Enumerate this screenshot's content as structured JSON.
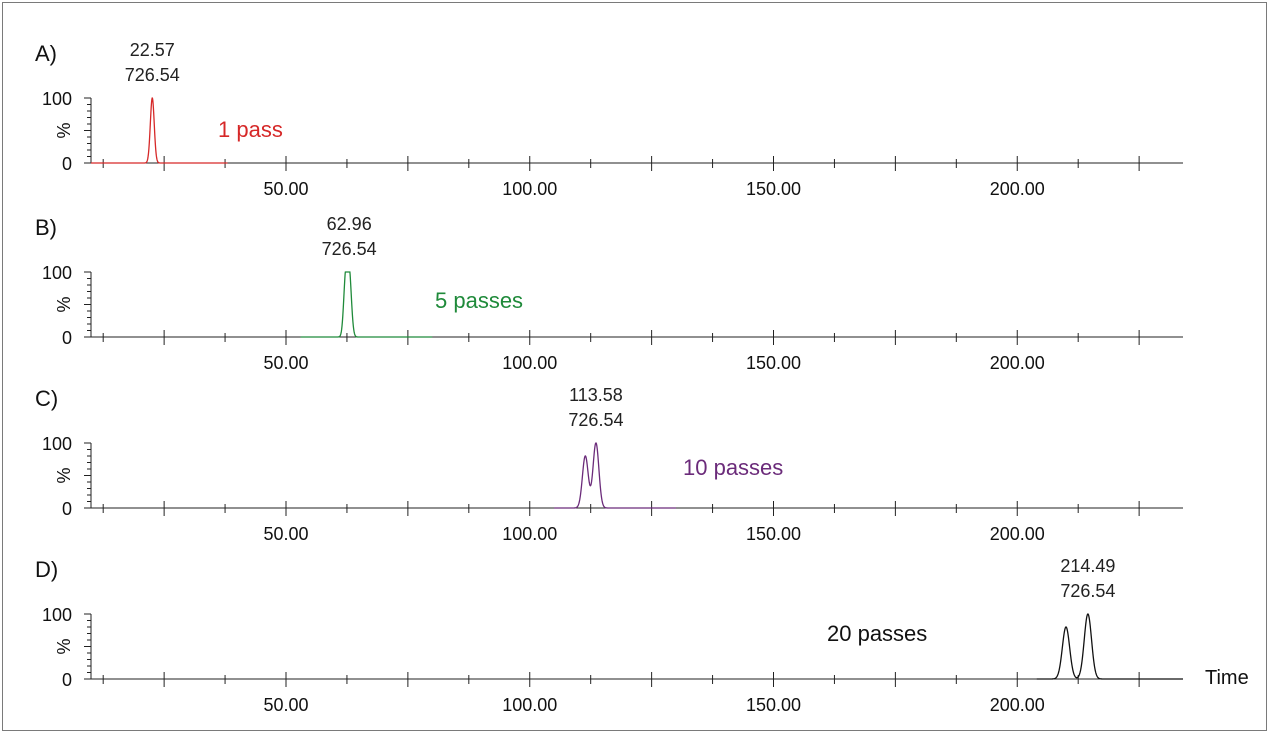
{
  "chart_data": [
    {
      "type": "line",
      "panel_label": "A)",
      "annotation_time": "22.57",
      "annotation_mass": "726.54",
      "legend_text": "1 pass",
      "color": "#d62828",
      "x_range_trace": [
        10,
        38
      ],
      "peaks": [
        {
          "x": 22.57,
          "y": 100,
          "width": 0.4
        }
      ],
      "xlim": [
        10,
        234
      ],
      "ylim": [
        0,
        100
      ],
      "y_ticks": [
        "100",
        "%",
        "0"
      ],
      "x_tick_labels": [
        "50.00",
        "100.00",
        "150.00",
        "200.00"
      ],
      "x_axis_label": ""
    },
    {
      "type": "line",
      "panel_label": "B)",
      "annotation_time": "62.96",
      "annotation_mass": "726.54",
      "legend_text": "5 passes",
      "color": "#1f8a3a",
      "x_range_trace": [
        53,
        80
      ],
      "peaks": [
        {
          "x": 62.2,
          "y": 80,
          "width": 0.4
        },
        {
          "x": 62.96,
          "y": 100,
          "width": 0.45
        }
      ],
      "xlim": [
        10,
        234
      ],
      "ylim": [
        0,
        100
      ],
      "y_ticks": [
        "100",
        "%",
        "0"
      ],
      "x_tick_labels": [
        "50.00",
        "100.00",
        "150.00",
        "200.00"
      ],
      "x_axis_label": ""
    },
    {
      "type": "line",
      "panel_label": "C)",
      "annotation_time": "113.58",
      "annotation_mass": "726.54",
      "legend_text": "10 passes",
      "color": "#6b2b7a",
      "x_range_trace": [
        105,
        130
      ],
      "peaks": [
        {
          "x": 111.4,
          "y": 80,
          "width": 0.6
        },
        {
          "x": 113.58,
          "y": 100,
          "width": 0.6
        }
      ],
      "xlim": [
        10,
        234
      ],
      "ylim": [
        0,
        100
      ],
      "y_ticks": [
        "100",
        "%",
        "0"
      ],
      "x_tick_labels": [
        "50.00",
        "100.00",
        "150.00",
        "200.00"
      ],
      "x_axis_label": ""
    },
    {
      "type": "line",
      "panel_label": "D)",
      "annotation_time": "214.49",
      "annotation_mass": "726.54",
      "legend_text": "20 passes",
      "color": "#111111",
      "x_range_trace": [
        204,
        234
      ],
      "peaks": [
        {
          "x": 210.0,
          "y": 80,
          "width": 0.75
        },
        {
          "x": 214.49,
          "y": 100,
          "width": 0.75
        }
      ],
      "xlim": [
        10,
        234
      ],
      "ylim": [
        0,
        100
      ],
      "y_ticks": [
        "100",
        "%",
        "0"
      ],
      "x_tick_labels": [
        "50.00",
        "100.00",
        "150.00",
        "200.00"
      ],
      "x_axis_label": "Time"
    }
  ]
}
